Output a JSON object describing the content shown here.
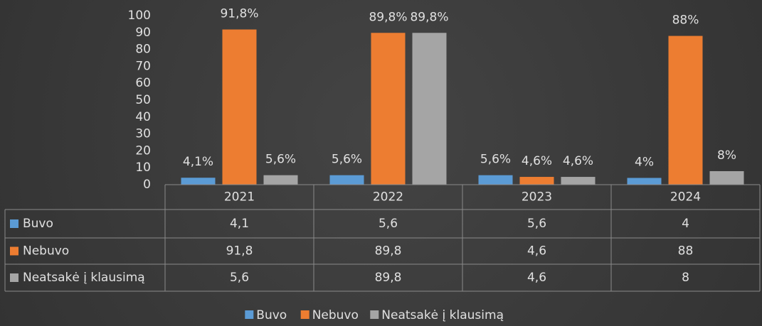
{
  "chart_data": {
    "type": "bar",
    "categories": [
      "2021",
      "2022",
      "2023",
      "2024"
    ],
    "ylim": [
      0,
      100
    ],
    "yticks": [
      0,
      10,
      20,
      30,
      40,
      50,
      60,
      70,
      80,
      90,
      100
    ],
    "series": [
      {
        "name": "Buvo",
        "color": "#5b9bd5",
        "values": [
          4.1,
          5.6,
          5.6,
          4
        ],
        "value_labels": [
          "4,1%",
          "5,6%",
          "5,6%",
          "4%"
        ],
        "table_values": [
          "4,1",
          "5,6",
          "5,6",
          "4"
        ]
      },
      {
        "name": "Nebuvo",
        "color": "#ed7d31",
        "values": [
          91.8,
          89.8,
          4.6,
          88
        ],
        "value_labels": [
          "91,8%",
          "89,8%",
          "4,6%",
          "88%"
        ],
        "table_values": [
          "91,8",
          "89,8",
          "4,6",
          "88"
        ]
      },
      {
        "name": "Neatsakė į klausimą",
        "color": "#a5a5a5",
        "values": [
          5.6,
          89.8,
          4.6,
          8
        ],
        "value_labels": [
          "5,6%",
          "89,8%",
          "4,6%",
          "8%"
        ],
        "table_values": [
          "5,6",
          "89,8",
          "4,6",
          "8"
        ]
      }
    ],
    "legend": "bottom"
  }
}
